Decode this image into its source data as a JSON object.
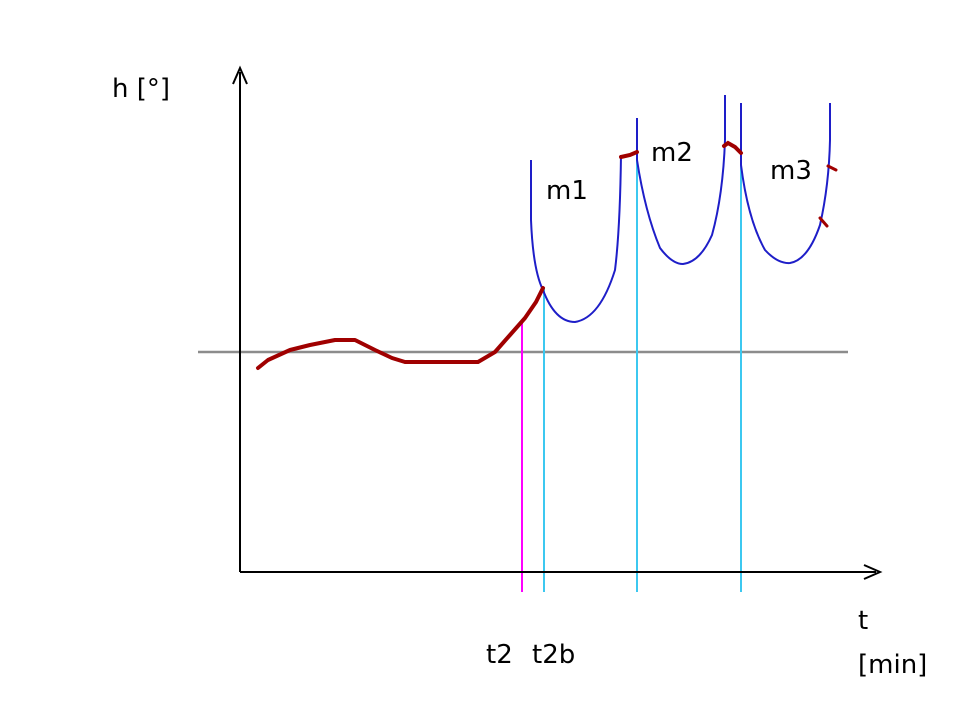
{
  "axes": {
    "y_label": "h [°]",
    "x_label_line1": "t",
    "x_label_line2": "[min]"
  },
  "markers": {
    "t2": "t2",
    "t2b": "t2b"
  },
  "curves": {
    "m1": "m1",
    "m2": "m2",
    "m3": "m3"
  },
  "colors": {
    "axis": "#000000",
    "reference_line": "#8c8c8c",
    "measured_curve": "#a00000",
    "model_curve": "#1e1ec8",
    "marker_t2": "#ff00ff",
    "marker_cyan": "#3cc8f0"
  }
}
